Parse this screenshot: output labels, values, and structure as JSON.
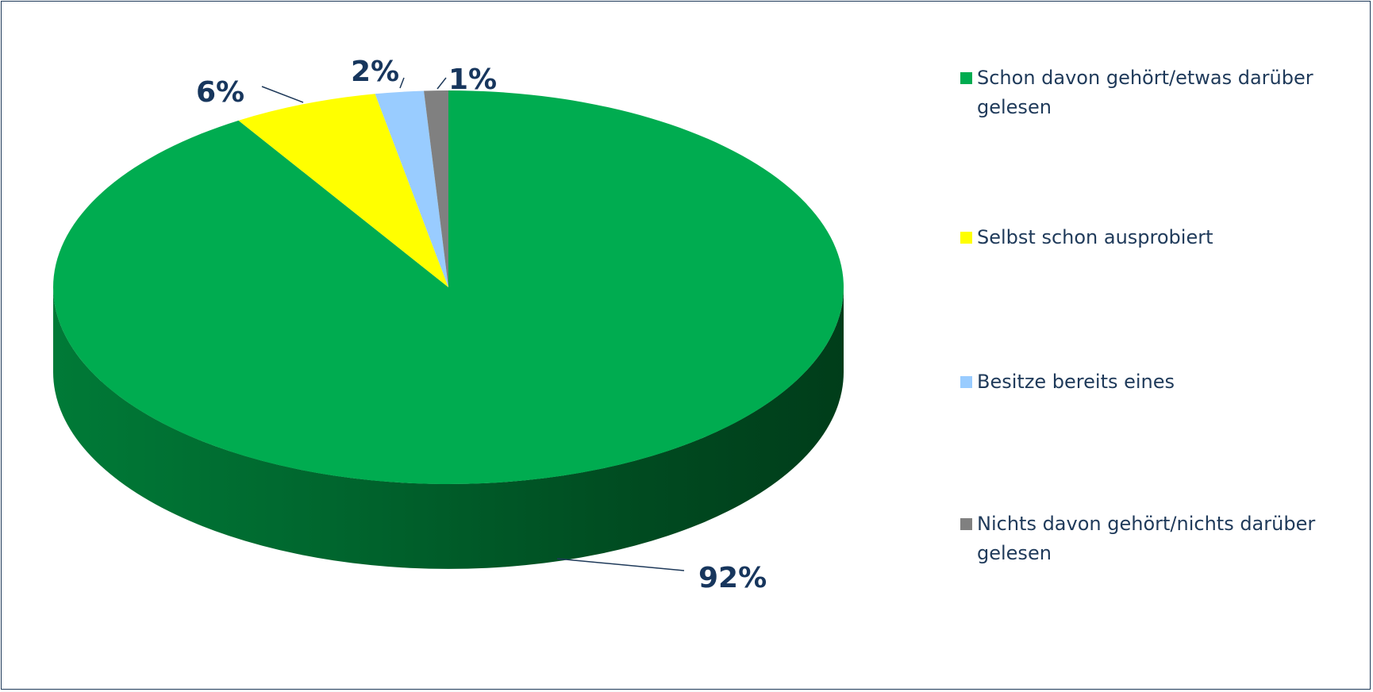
{
  "chart_data": {
    "type": "pie",
    "style": "3d",
    "title": "",
    "categories": [
      "Schon davon gehört/etwas darüber gelesen",
      "Selbst schon ausprobiert",
      "Besitze bereits eines",
      "Nichts davon gehört/nichts darüber gelesen"
    ],
    "values": [
      92,
      6,
      2,
      1
    ],
    "labels": [
      "92%",
      "6%",
      "2%",
      "1%"
    ],
    "colors": [
      "#00ac50",
      "#ffff00",
      "#99ccff",
      "#808080"
    ],
    "legend_position": "right"
  }
}
